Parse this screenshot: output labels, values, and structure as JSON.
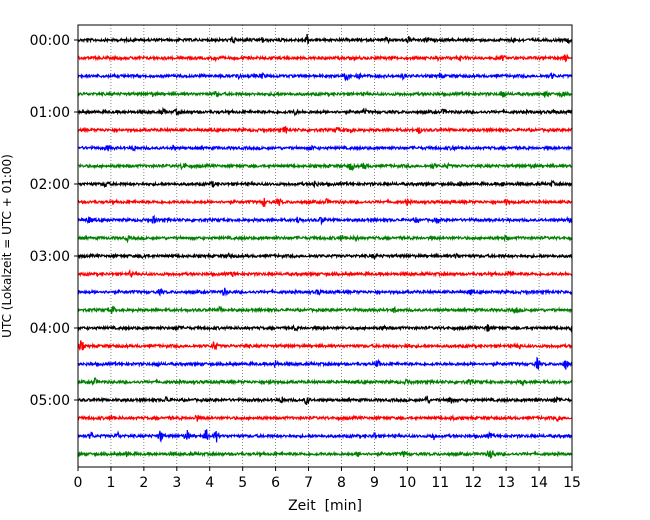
{
  "chart_data": {
    "type": "line",
    "title": "",
    "xlabel": "Zeit  [min]",
    "ylabel": "UTC (Lokalzeit = UTC + 01:00)",
    "xlim": [
      0,
      15
    ],
    "x_ticks": [
      "0",
      "1",
      "2",
      "3",
      "4",
      "5",
      "6",
      "7",
      "8",
      "9",
      "10",
      "11",
      "12",
      "13",
      "14",
      "15"
    ],
    "y_ticks": [
      "00:00",
      "01:00",
      "02:00",
      "03:00",
      "04:00",
      "05:00"
    ],
    "grid": "vertical-dotted",
    "trace_start_times": [
      "00:00",
      "00:15",
      "00:30",
      "00:45",
      "01:00",
      "01:15",
      "01:30",
      "01:45",
      "02:00",
      "02:15",
      "02:30",
      "02:45",
      "03:00",
      "03:15",
      "03:30",
      "03:45",
      "04:00",
      "04:15",
      "04:30",
      "04:45",
      "05:00",
      "05:15",
      "05:30",
      "05:45"
    ],
    "trace_colors": [
      "#000000",
      "#ff0000",
      "#0000ff",
      "#008000"
    ],
    "events": [
      [
        [
          4.7,
          3
        ],
        [
          5.6,
          2
        ],
        [
          6.95,
          5
        ],
        [
          9.4,
          2
        ],
        [
          10.05,
          3
        ],
        [
          10.6,
          2
        ],
        [
          13.2,
          2
        ],
        [
          14.9,
          2
        ]
      ],
      [
        [
          4.2,
          2
        ],
        [
          10.95,
          3
        ],
        [
          11.6,
          2
        ],
        [
          12.9,
          2
        ],
        [
          14.8,
          3
        ]
      ],
      [
        [
          4.85,
          3
        ],
        [
          5.6,
          2
        ],
        [
          8.15,
          4
        ],
        [
          8.5,
          3
        ],
        [
          9.9,
          2
        ],
        [
          11.0,
          2
        ],
        [
          14.4,
          2
        ]
      ],
      [
        [
          2.3,
          2
        ],
        [
          4.2,
          2
        ],
        [
          6.0,
          2
        ],
        [
          12.9,
          4
        ],
        [
          14.2,
          3
        ],
        [
          14.7,
          3
        ]
      ],
      [
        [
          2.6,
          2
        ],
        [
          3.0,
          2
        ],
        [
          6.6,
          2
        ],
        [
          8.7,
          2
        ],
        [
          11.1,
          2
        ],
        [
          14.5,
          2
        ]
      ],
      [
        [
          6.3,
          3
        ],
        [
          7.9,
          2
        ],
        [
          8.25,
          3
        ],
        [
          10.35,
          3
        ]
      ],
      [
        [
          0.9,
          2
        ],
        [
          1.7,
          2
        ],
        [
          2.9,
          2
        ],
        [
          7.1,
          2
        ],
        [
          11.4,
          2
        ]
      ],
      [
        [
          3.2,
          4
        ],
        [
          8.3,
          4
        ],
        [
          8.7,
          3
        ],
        [
          10.8,
          2
        ],
        [
          11.2,
          2
        ],
        [
          13.8,
          2
        ]
      ],
      [
        [
          0.85,
          3
        ],
        [
          4.1,
          2
        ],
        [
          7.2,
          3
        ],
        [
          11.6,
          2
        ],
        [
          12.9,
          2
        ],
        [
          14.4,
          2
        ]
      ],
      [
        [
          5.65,
          4
        ],
        [
          6.1,
          3
        ],
        [
          7.55,
          2
        ],
        [
          10.0,
          2
        ],
        [
          13.0,
          2
        ]
      ],
      [
        [
          0.35,
          3
        ],
        [
          2.3,
          3
        ],
        [
          6.7,
          4
        ],
        [
          7.4,
          3
        ],
        [
          10.3,
          2
        ],
        [
          10.9,
          2
        ],
        [
          14.9,
          2
        ]
      ],
      [
        [
          1.5,
          2
        ],
        [
          8.0,
          2
        ],
        [
          8.45,
          2
        ],
        [
          13.0,
          2
        ]
      ],
      [
        [
          2.0,
          2
        ],
        [
          4.6,
          2
        ],
        [
          9.0,
          2
        ],
        [
          11.5,
          2
        ]
      ],
      [
        [
          1.6,
          2
        ],
        [
          4.7,
          2
        ],
        [
          13.1,
          3
        ]
      ],
      [
        [
          2.5,
          2
        ],
        [
          4.45,
          3
        ],
        [
          7.3,
          2
        ],
        [
          11.9,
          2
        ]
      ],
      [
        [
          1.05,
          3
        ],
        [
          4.3,
          2
        ],
        [
          9.6,
          2
        ],
        [
          13.3,
          2
        ]
      ],
      [
        [
          3.0,
          2
        ],
        [
          6.6,
          2
        ],
        [
          9.3,
          2
        ],
        [
          12.45,
          3
        ],
        [
          15.0,
          4
        ]
      ],
      [
        [
          0.1,
          5
        ],
        [
          4.15,
          5
        ],
        [
          5.1,
          2
        ],
        [
          10.0,
          2
        ],
        [
          13.4,
          2
        ]
      ],
      [
        [
          2.4,
          2
        ],
        [
          6.0,
          3
        ],
        [
          9.1,
          3
        ],
        [
          13.95,
          5
        ],
        [
          14.8,
          5
        ]
      ],
      [
        [
          0.5,
          3
        ],
        [
          5.85,
          2
        ],
        [
          10.0,
          2
        ],
        [
          11.9,
          2
        ],
        [
          13.5,
          2
        ]
      ],
      [
        [
          2.7,
          3
        ],
        [
          6.2,
          3
        ],
        [
          6.95,
          4
        ],
        [
          10.6,
          4
        ],
        [
          11.3,
          4
        ],
        [
          13.9,
          3
        ],
        [
          14.5,
          3
        ]
      ],
      [
        [
          1.0,
          2
        ],
        [
          3.6,
          3
        ],
        [
          11.4,
          2
        ],
        [
          14.6,
          3
        ]
      ],
      [
        [
          0.4,
          3
        ],
        [
          1.2,
          3
        ],
        [
          2.5,
          5
        ],
        [
          3.3,
          6
        ],
        [
          3.9,
          6
        ],
        [
          4.2,
          5
        ],
        [
          9.0,
          3
        ],
        [
          10.8,
          3
        ],
        [
          12.5,
          2
        ]
      ],
      [
        [
          1.5,
          2
        ],
        [
          8.5,
          2
        ],
        [
          9.9,
          2
        ],
        [
          12.5,
          3
        ],
        [
          12.6,
          3
        ]
      ]
    ]
  }
}
